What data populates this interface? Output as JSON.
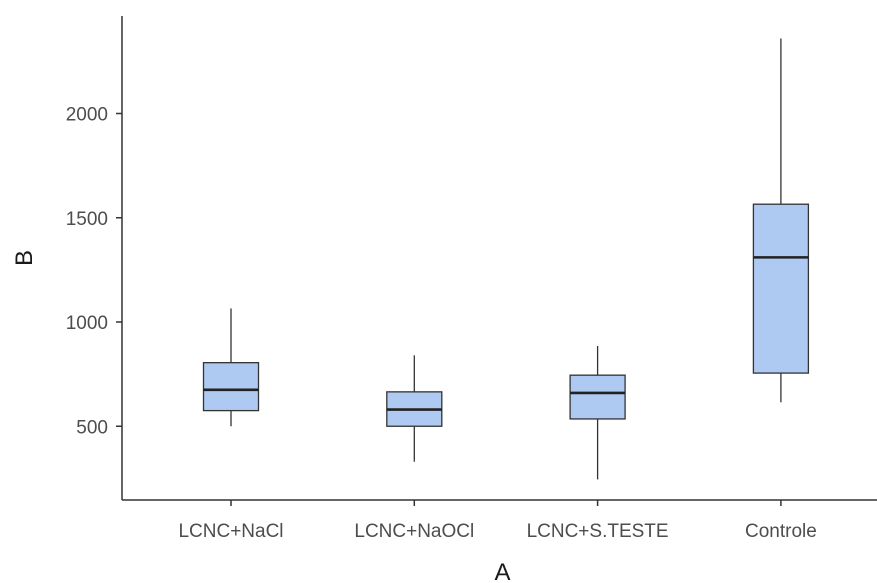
{
  "chart_data": {
    "type": "boxplot",
    "title": "",
    "xlabel": "A",
    "ylabel": "B",
    "ylim": [
      150,
      2400
    ],
    "yticks": [
      500,
      1000,
      1500,
      2000
    ],
    "grid": false,
    "box_color": "#aec9f2",
    "categories": [
      "LCNC+NaCl",
      "LCNC+NaOCl",
      "LCNC+S.TESTE",
      "Controle"
    ],
    "boxes": [
      {
        "category": "LCNC+NaCl",
        "min": 500,
        "q1": 575,
        "median": 675,
        "q3": 805,
        "max": 1065
      },
      {
        "category": "LCNC+NaOCl",
        "min": 330,
        "q1": 500,
        "median": 580,
        "q3": 665,
        "max": 840
      },
      {
        "category": "LCNC+S.TESTE",
        "min": 245,
        "q1": 535,
        "median": 660,
        "q3": 745,
        "max": 885
      },
      {
        "category": "Controle",
        "min": 615,
        "q1": 755,
        "median": 1310,
        "q3": 1565,
        "max": 2360
      }
    ]
  }
}
